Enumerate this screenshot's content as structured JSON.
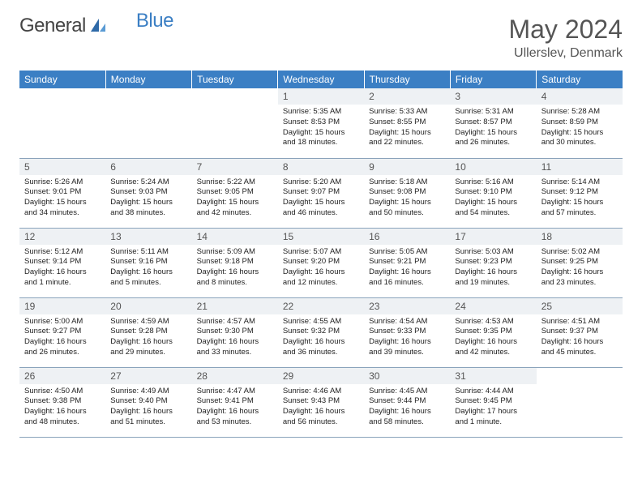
{
  "brand": {
    "name1": "General",
    "name2": "Blue"
  },
  "title": "May 2024",
  "location": "Ullerslev, Denmark",
  "header_color": "#3b7fc4",
  "daynum_bg": "#eef1f4",
  "border_color": "#8aa3bb",
  "day_headers": [
    "Sunday",
    "Monday",
    "Tuesday",
    "Wednesday",
    "Thursday",
    "Friday",
    "Saturday"
  ],
  "weeks": [
    [
      null,
      null,
      null,
      {
        "n": "1",
        "sr": "5:35 AM",
        "ss": "8:53 PM",
        "dl": "15 hours and 18 minutes."
      },
      {
        "n": "2",
        "sr": "5:33 AM",
        "ss": "8:55 PM",
        "dl": "15 hours and 22 minutes."
      },
      {
        "n": "3",
        "sr": "5:31 AM",
        "ss": "8:57 PM",
        "dl": "15 hours and 26 minutes."
      },
      {
        "n": "4",
        "sr": "5:28 AM",
        "ss": "8:59 PM",
        "dl": "15 hours and 30 minutes."
      }
    ],
    [
      {
        "n": "5",
        "sr": "5:26 AM",
        "ss": "9:01 PM",
        "dl": "15 hours and 34 minutes."
      },
      {
        "n": "6",
        "sr": "5:24 AM",
        "ss": "9:03 PM",
        "dl": "15 hours and 38 minutes."
      },
      {
        "n": "7",
        "sr": "5:22 AM",
        "ss": "9:05 PM",
        "dl": "15 hours and 42 minutes."
      },
      {
        "n": "8",
        "sr": "5:20 AM",
        "ss": "9:07 PM",
        "dl": "15 hours and 46 minutes."
      },
      {
        "n": "9",
        "sr": "5:18 AM",
        "ss": "9:08 PM",
        "dl": "15 hours and 50 minutes."
      },
      {
        "n": "10",
        "sr": "5:16 AM",
        "ss": "9:10 PM",
        "dl": "15 hours and 54 minutes."
      },
      {
        "n": "11",
        "sr": "5:14 AM",
        "ss": "9:12 PM",
        "dl": "15 hours and 57 minutes."
      }
    ],
    [
      {
        "n": "12",
        "sr": "5:12 AM",
        "ss": "9:14 PM",
        "dl": "16 hours and 1 minute."
      },
      {
        "n": "13",
        "sr": "5:11 AM",
        "ss": "9:16 PM",
        "dl": "16 hours and 5 minutes."
      },
      {
        "n": "14",
        "sr": "5:09 AM",
        "ss": "9:18 PM",
        "dl": "16 hours and 8 minutes."
      },
      {
        "n": "15",
        "sr": "5:07 AM",
        "ss": "9:20 PM",
        "dl": "16 hours and 12 minutes."
      },
      {
        "n": "16",
        "sr": "5:05 AM",
        "ss": "9:21 PM",
        "dl": "16 hours and 16 minutes."
      },
      {
        "n": "17",
        "sr": "5:03 AM",
        "ss": "9:23 PM",
        "dl": "16 hours and 19 minutes."
      },
      {
        "n": "18",
        "sr": "5:02 AM",
        "ss": "9:25 PM",
        "dl": "16 hours and 23 minutes."
      }
    ],
    [
      {
        "n": "19",
        "sr": "5:00 AM",
        "ss": "9:27 PM",
        "dl": "16 hours and 26 minutes."
      },
      {
        "n": "20",
        "sr": "4:59 AM",
        "ss": "9:28 PM",
        "dl": "16 hours and 29 minutes."
      },
      {
        "n": "21",
        "sr": "4:57 AM",
        "ss": "9:30 PM",
        "dl": "16 hours and 33 minutes."
      },
      {
        "n": "22",
        "sr": "4:55 AM",
        "ss": "9:32 PM",
        "dl": "16 hours and 36 minutes."
      },
      {
        "n": "23",
        "sr": "4:54 AM",
        "ss": "9:33 PM",
        "dl": "16 hours and 39 minutes."
      },
      {
        "n": "24",
        "sr": "4:53 AM",
        "ss": "9:35 PM",
        "dl": "16 hours and 42 minutes."
      },
      {
        "n": "25",
        "sr": "4:51 AM",
        "ss": "9:37 PM",
        "dl": "16 hours and 45 minutes."
      }
    ],
    [
      {
        "n": "26",
        "sr": "4:50 AM",
        "ss": "9:38 PM",
        "dl": "16 hours and 48 minutes."
      },
      {
        "n": "27",
        "sr": "4:49 AM",
        "ss": "9:40 PM",
        "dl": "16 hours and 51 minutes."
      },
      {
        "n": "28",
        "sr": "4:47 AM",
        "ss": "9:41 PM",
        "dl": "16 hours and 53 minutes."
      },
      {
        "n": "29",
        "sr": "4:46 AM",
        "ss": "9:43 PM",
        "dl": "16 hours and 56 minutes."
      },
      {
        "n": "30",
        "sr": "4:45 AM",
        "ss": "9:44 PM",
        "dl": "16 hours and 58 minutes."
      },
      {
        "n": "31",
        "sr": "4:44 AM",
        "ss": "9:45 PM",
        "dl": "17 hours and 1 minute."
      },
      null
    ]
  ],
  "labels": {
    "sunrise": "Sunrise:",
    "sunset": "Sunset:",
    "daylight": "Daylight:"
  }
}
